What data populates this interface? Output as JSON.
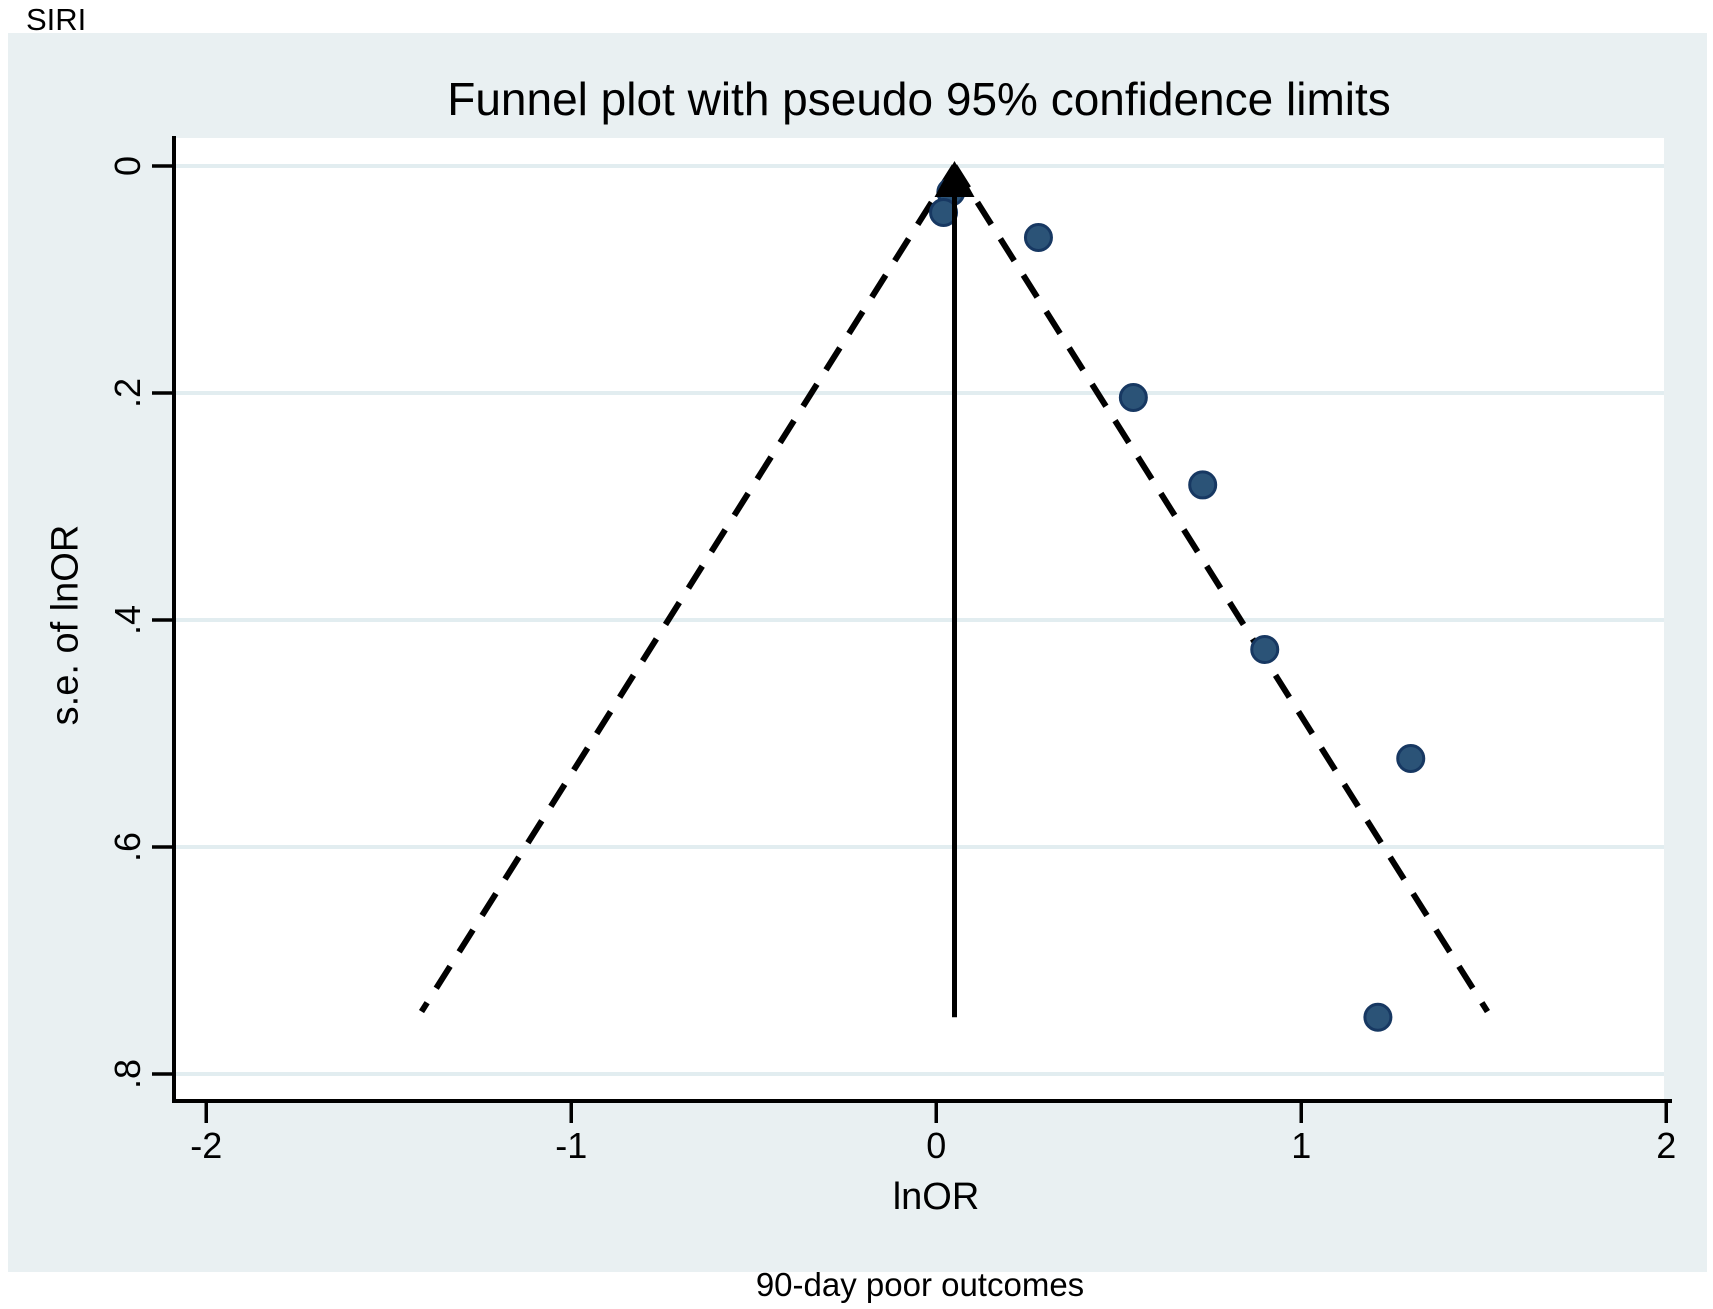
{
  "page": {
    "panel_label": "SIRI",
    "caption": "90-day poor outcomes"
  },
  "chart_data": {
    "type": "scatter",
    "title": "Funnel plot with pseudo 95% confidence limits",
    "xlabel": "lnOR",
    "ylabel": "s.e. of lnOR",
    "caption": "90-day poor outcomes",
    "panel_label": "SIRI",
    "grid": true,
    "legend": "none",
    "x_axis": {
      "min": -2.09,
      "max": 2.0,
      "ticks": [
        -2,
        -1,
        0,
        1,
        2
      ],
      "tick_labels": [
        "-2",
        "-1",
        "0",
        "1",
        "2"
      ]
    },
    "y_axis": {
      "min": 0,
      "max": 0.8,
      "reversed": true,
      "ticks": [
        0,
        0.2,
        0.4,
        0.6,
        0.8
      ],
      "tick_labels": [
        "0",
        ".2",
        ".4",
        ".6",
        ".8"
      ]
    },
    "pooled_effect_lnor": 0.05,
    "pseudo_ci_multiplier": 1.96,
    "funnel_max_se": 0.745,
    "effect_line_max_se": 0.75,
    "points": [
      {
        "lnor": 0.04,
        "se": 0.023
      },
      {
        "lnor": 0.02,
        "se": 0.041
      },
      {
        "lnor": 0.28,
        "se": 0.063
      },
      {
        "lnor": 0.54,
        "se": 0.204
      },
      {
        "lnor": 0.73,
        "se": 0.281
      },
      {
        "lnor": 0.9,
        "se": 0.426
      },
      {
        "lnor": 1.3,
        "se": 0.522
      },
      {
        "lnor": 1.21,
        "se": 0.75
      }
    ],
    "colors": {
      "marker_fill": "#2b5377",
      "marker_stroke": "#173862",
      "graph_background": "#e9f0f2",
      "plot_background": "#ffffff",
      "gridline": "#e2edf0",
      "line": "#000000",
      "text": "#000000"
    }
  }
}
